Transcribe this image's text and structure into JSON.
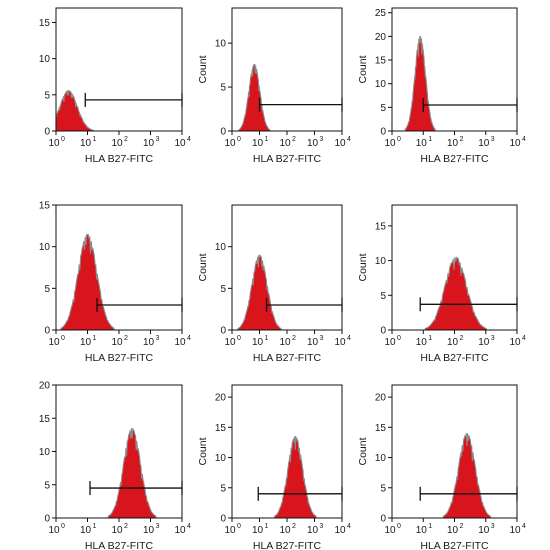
{
  "colors": {
    "fill": "#d8141c",
    "edge": "#8a8a8a",
    "axis": "#111111"
  },
  "chart_data": [
    {
      "type": "area",
      "xlabel": "HLA B27-FITC",
      "ylabel": "",
      "xscale": "log",
      "xlim": [
        1,
        10000
      ],
      "xticks": [
        "10",
        "10",
        "10",
        "10",
        "10"
      ],
      "xtick_exponents": [
        "0",
        "1",
        "2",
        "3",
        "4"
      ],
      "ylim": [
        0,
        17
      ],
      "yticks": [
        "0",
        "5",
        "10",
        "15"
      ],
      "histogram": {
        "peak_x": 2.5,
        "peak_y": 5.6,
        "spread_decades": 0.28
      },
      "marker": {
        "x_start": 8.5,
        "x_end": 10000,
        "y": 4.3
      }
    },
    {
      "type": "area",
      "xlabel": "HLA B27-FITC",
      "ylabel": "Count",
      "xscale": "log",
      "xlim": [
        1,
        10000
      ],
      "xticks": [
        "10",
        "10",
        "10",
        "10",
        "10"
      ],
      "xtick_exponents": [
        "0",
        "1",
        "2",
        "3",
        "4"
      ],
      "ylim": [
        0,
        14
      ],
      "yticks": [
        "0",
        "5",
        "10"
      ],
      "histogram": {
        "peak_x": 6.5,
        "peak_y": 7.6,
        "spread_decades": 0.2
      },
      "marker": {
        "x_start": 10,
        "x_end": 10000,
        "y": 3
      }
    },
    {
      "type": "area",
      "xlabel": "HLA B27-FITC",
      "ylabel": "Count",
      "xscale": "log",
      "xlim": [
        1,
        10000
      ],
      "xticks": [
        "10",
        "10",
        "10",
        "10",
        "10"
      ],
      "xtick_exponents": [
        "0",
        "1",
        "2",
        "3",
        "4"
      ],
      "ylim": [
        0,
        26
      ],
      "yticks": [
        "0",
        "5",
        "10",
        "15",
        "20",
        "25"
      ],
      "histogram": {
        "peak_x": 8,
        "peak_y": 20,
        "spread_decades": 0.17
      },
      "marker": {
        "x_start": 10,
        "x_end": 10000,
        "y": 5.5
      }
    },
    {
      "type": "area",
      "xlabel": "HLA B27-FITC",
      "ylabel": "",
      "xscale": "log",
      "xlim": [
        1,
        10000
      ],
      "xticks": [
        "10",
        "10",
        "10",
        "10",
        "10"
      ],
      "xtick_exponents": [
        "0",
        "1",
        "2",
        "3",
        "4"
      ],
      "ylim": [
        0,
        15
      ],
      "yticks": [
        "0",
        "5",
        "10",
        "15"
      ],
      "histogram": {
        "peak_x": 10,
        "peak_y": 11.5,
        "spread_decades": 0.3
      },
      "marker": {
        "x_start": 20,
        "x_end": 10000,
        "y": 3
      }
    },
    {
      "type": "area",
      "xlabel": "HLA B27-FITC",
      "ylabel": "Count",
      "xscale": "log",
      "xlim": [
        1,
        10000
      ],
      "xticks": [
        "10",
        "10",
        "10",
        "10",
        "10"
      ],
      "xtick_exponents": [
        "0",
        "1",
        "2",
        "3",
        "4"
      ],
      "ylim": [
        0,
        15
      ],
      "yticks": [
        "0",
        "5",
        "10"
      ],
      "histogram": {
        "peak_x": 10,
        "peak_y": 9,
        "spread_decades": 0.28
      },
      "marker": {
        "x_start": 18,
        "x_end": 10000,
        "y": 3
      }
    },
    {
      "type": "area",
      "xlabel": "HLA B27-FITC",
      "ylabel": "Count",
      "xscale": "log",
      "xlim": [
        1,
        10000
      ],
      "xticks": [
        "10",
        "10",
        "10",
        "10",
        "10"
      ],
      "xtick_exponents": [
        "0",
        "1",
        "2",
        "3",
        "4"
      ],
      "ylim": [
        0,
        18
      ],
      "yticks": [
        "0",
        "5",
        "10",
        "15"
      ],
      "histogram": {
        "peak_x": 110,
        "peak_y": 10.5,
        "spread_decades": 0.35
      },
      "marker": {
        "x_start": 8,
        "x_end": 10000,
        "y": 3.7
      }
    },
    {
      "type": "area",
      "xlabel": "HLA B27-FITC",
      "ylabel": "",
      "xscale": "log",
      "xlim": [
        1,
        10000
      ],
      "xticks": [
        "10",
        "10",
        "10",
        "10",
        "10"
      ],
      "xtick_exponents": [
        "0",
        "1",
        "2",
        "3",
        "4"
      ],
      "ylim": [
        0,
        20
      ],
      "yticks": [
        "0",
        "5",
        "10",
        "15",
        "20"
      ],
      "histogram": {
        "peak_x": 260,
        "peak_y": 13.5,
        "spread_decades": 0.27
      },
      "marker": {
        "x_start": 12,
        "x_end": 10000,
        "y": 4.5
      }
    },
    {
      "type": "area",
      "xlabel": "HLA B27-FITC",
      "ylabel": "Count",
      "xscale": "log",
      "xlim": [
        1,
        10000
      ],
      "xticks": [
        "10",
        "10",
        "10",
        "10",
        "10"
      ],
      "xtick_exponents": [
        "0",
        "1",
        "2",
        "3",
        "4"
      ],
      "ylim": [
        0,
        22
      ],
      "yticks": [
        "0",
        "5",
        "10",
        "15",
        "20"
      ],
      "histogram": {
        "peak_x": 200,
        "peak_y": 13.5,
        "spread_decades": 0.27
      },
      "marker": {
        "x_start": 9,
        "x_end": 10000,
        "y": 4
      }
    },
    {
      "type": "area",
      "xlabel": "HLA B27-FITC",
      "ylabel": "Count",
      "xscale": "log",
      "xlim": [
        1,
        10000
      ],
      "xticks": [
        "10",
        "10",
        "10",
        "10",
        "10"
      ],
      "xtick_exponents": [
        "0",
        "1",
        "2",
        "3",
        "4"
      ],
      "ylim": [
        0,
        22
      ],
      "yticks": [
        "0",
        "5",
        "10",
        "15",
        "20"
      ],
      "histogram": {
        "peak_x": 250,
        "peak_y": 14,
        "spread_decades": 0.27
      },
      "marker": {
        "x_start": 8,
        "x_end": 10000,
        "y": 4
      }
    }
  ]
}
